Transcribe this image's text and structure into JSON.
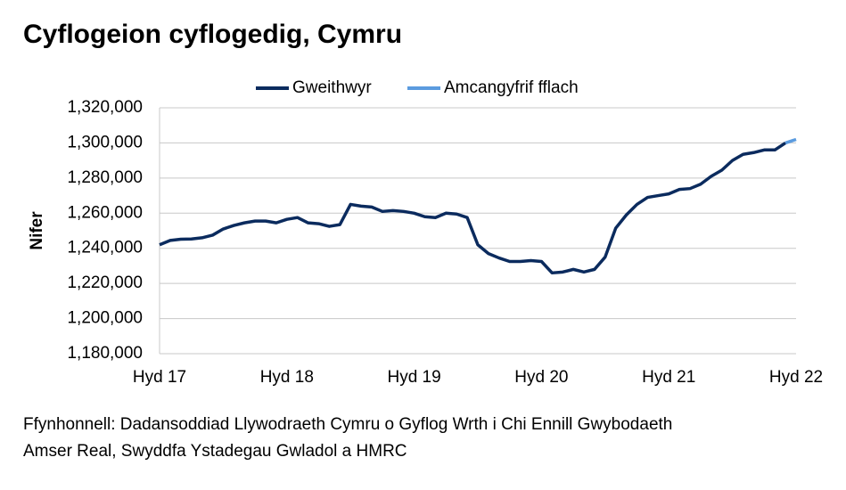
{
  "chart_data": {
    "type": "line",
    "title": "Cyflogeion cyflogedig, Cymru",
    "y_label": "Nifer",
    "source": [
      "Ffynhonnell: Dadansoddiad Llywodraeth Cymru o Gyflog Wrth i Chi Ennill Gwybodaeth",
      "Amser Real, Swyddfa Ystadegau Gwladol a HMRC"
    ],
    "categories": [
      "Hyd 17",
      null,
      null,
      null,
      null,
      null,
      null,
      null,
      null,
      null,
      null,
      null,
      "Hyd 18",
      null,
      null,
      null,
      null,
      null,
      null,
      null,
      null,
      null,
      null,
      null,
      "Hyd 19",
      null,
      null,
      null,
      null,
      null,
      null,
      null,
      null,
      null,
      null,
      null,
      "Hyd 20",
      null,
      null,
      null,
      null,
      null,
      null,
      null,
      null,
      null,
      null,
      null,
      "Hyd 21",
      null,
      null,
      null,
      null,
      null,
      null,
      null,
      null,
      null,
      null,
      null,
      "Hyd 22"
    ],
    "series": [
      {
        "name": "Gweithwyr",
        "color": "#0b2b5e",
        "values": [
          1242000,
          1244500,
          1245200,
          1245300,
          1246000,
          1247500,
          1251000,
          1253000,
          1254500,
          1255500,
          1255500,
          1254500,
          1256500,
          1257500,
          1254500,
          1254000,
          1252500,
          1253500,
          1265000,
          1264000,
          1263500,
          1261000,
          1261500,
          1261000,
          1260000,
          1258000,
          1257500,
          1260000,
          1259500,
          1257500,
          1242000,
          1237000,
          1234500,
          1232500,
          1232500,
          1233000,
          1232500,
          1226000,
          1226500,
          1228000,
          1226500,
          1228000,
          1235000,
          1251500,
          1259000,
          1265000,
          1269000,
          1270000,
          1271000,
          1273500,
          1274000,
          1276500,
          1281000,
          1284500,
          1290000,
          1293500,
          1294500,
          1296000,
          1296000,
          1300000,
          null
        ]
      },
      {
        "name": "Amcangyfrif fflach",
        "color": "#5b9bdf",
        "values": [
          null,
          null,
          null,
          null,
          null,
          null,
          null,
          null,
          null,
          null,
          null,
          null,
          null,
          null,
          null,
          null,
          null,
          null,
          null,
          null,
          null,
          null,
          null,
          null,
          null,
          null,
          null,
          null,
          null,
          null,
          null,
          null,
          null,
          null,
          null,
          null,
          null,
          null,
          null,
          null,
          null,
          null,
          null,
          null,
          null,
          null,
          null,
          null,
          null,
          null,
          null,
          null,
          null,
          null,
          null,
          null,
          null,
          null,
          null,
          1300000,
          1302000
        ]
      }
    ],
    "ylim": [
      1180000,
      1320000
    ],
    "yticks": [
      {
        "value": 1180000,
        "label": "1,180,000"
      },
      {
        "value": 1200000,
        "label": "1,200,000"
      },
      {
        "value": 1220000,
        "label": "1,220,000"
      },
      {
        "value": 1240000,
        "label": "1,240,000"
      },
      {
        "value": 1260000,
        "label": "1,260,000"
      },
      {
        "value": 1280000,
        "label": "1,280,000"
      },
      {
        "value": 1300000,
        "label": "1,300,000"
      },
      {
        "value": 1320000,
        "label": "1,320,000"
      }
    ],
    "grid": true,
    "legend": "top"
  }
}
